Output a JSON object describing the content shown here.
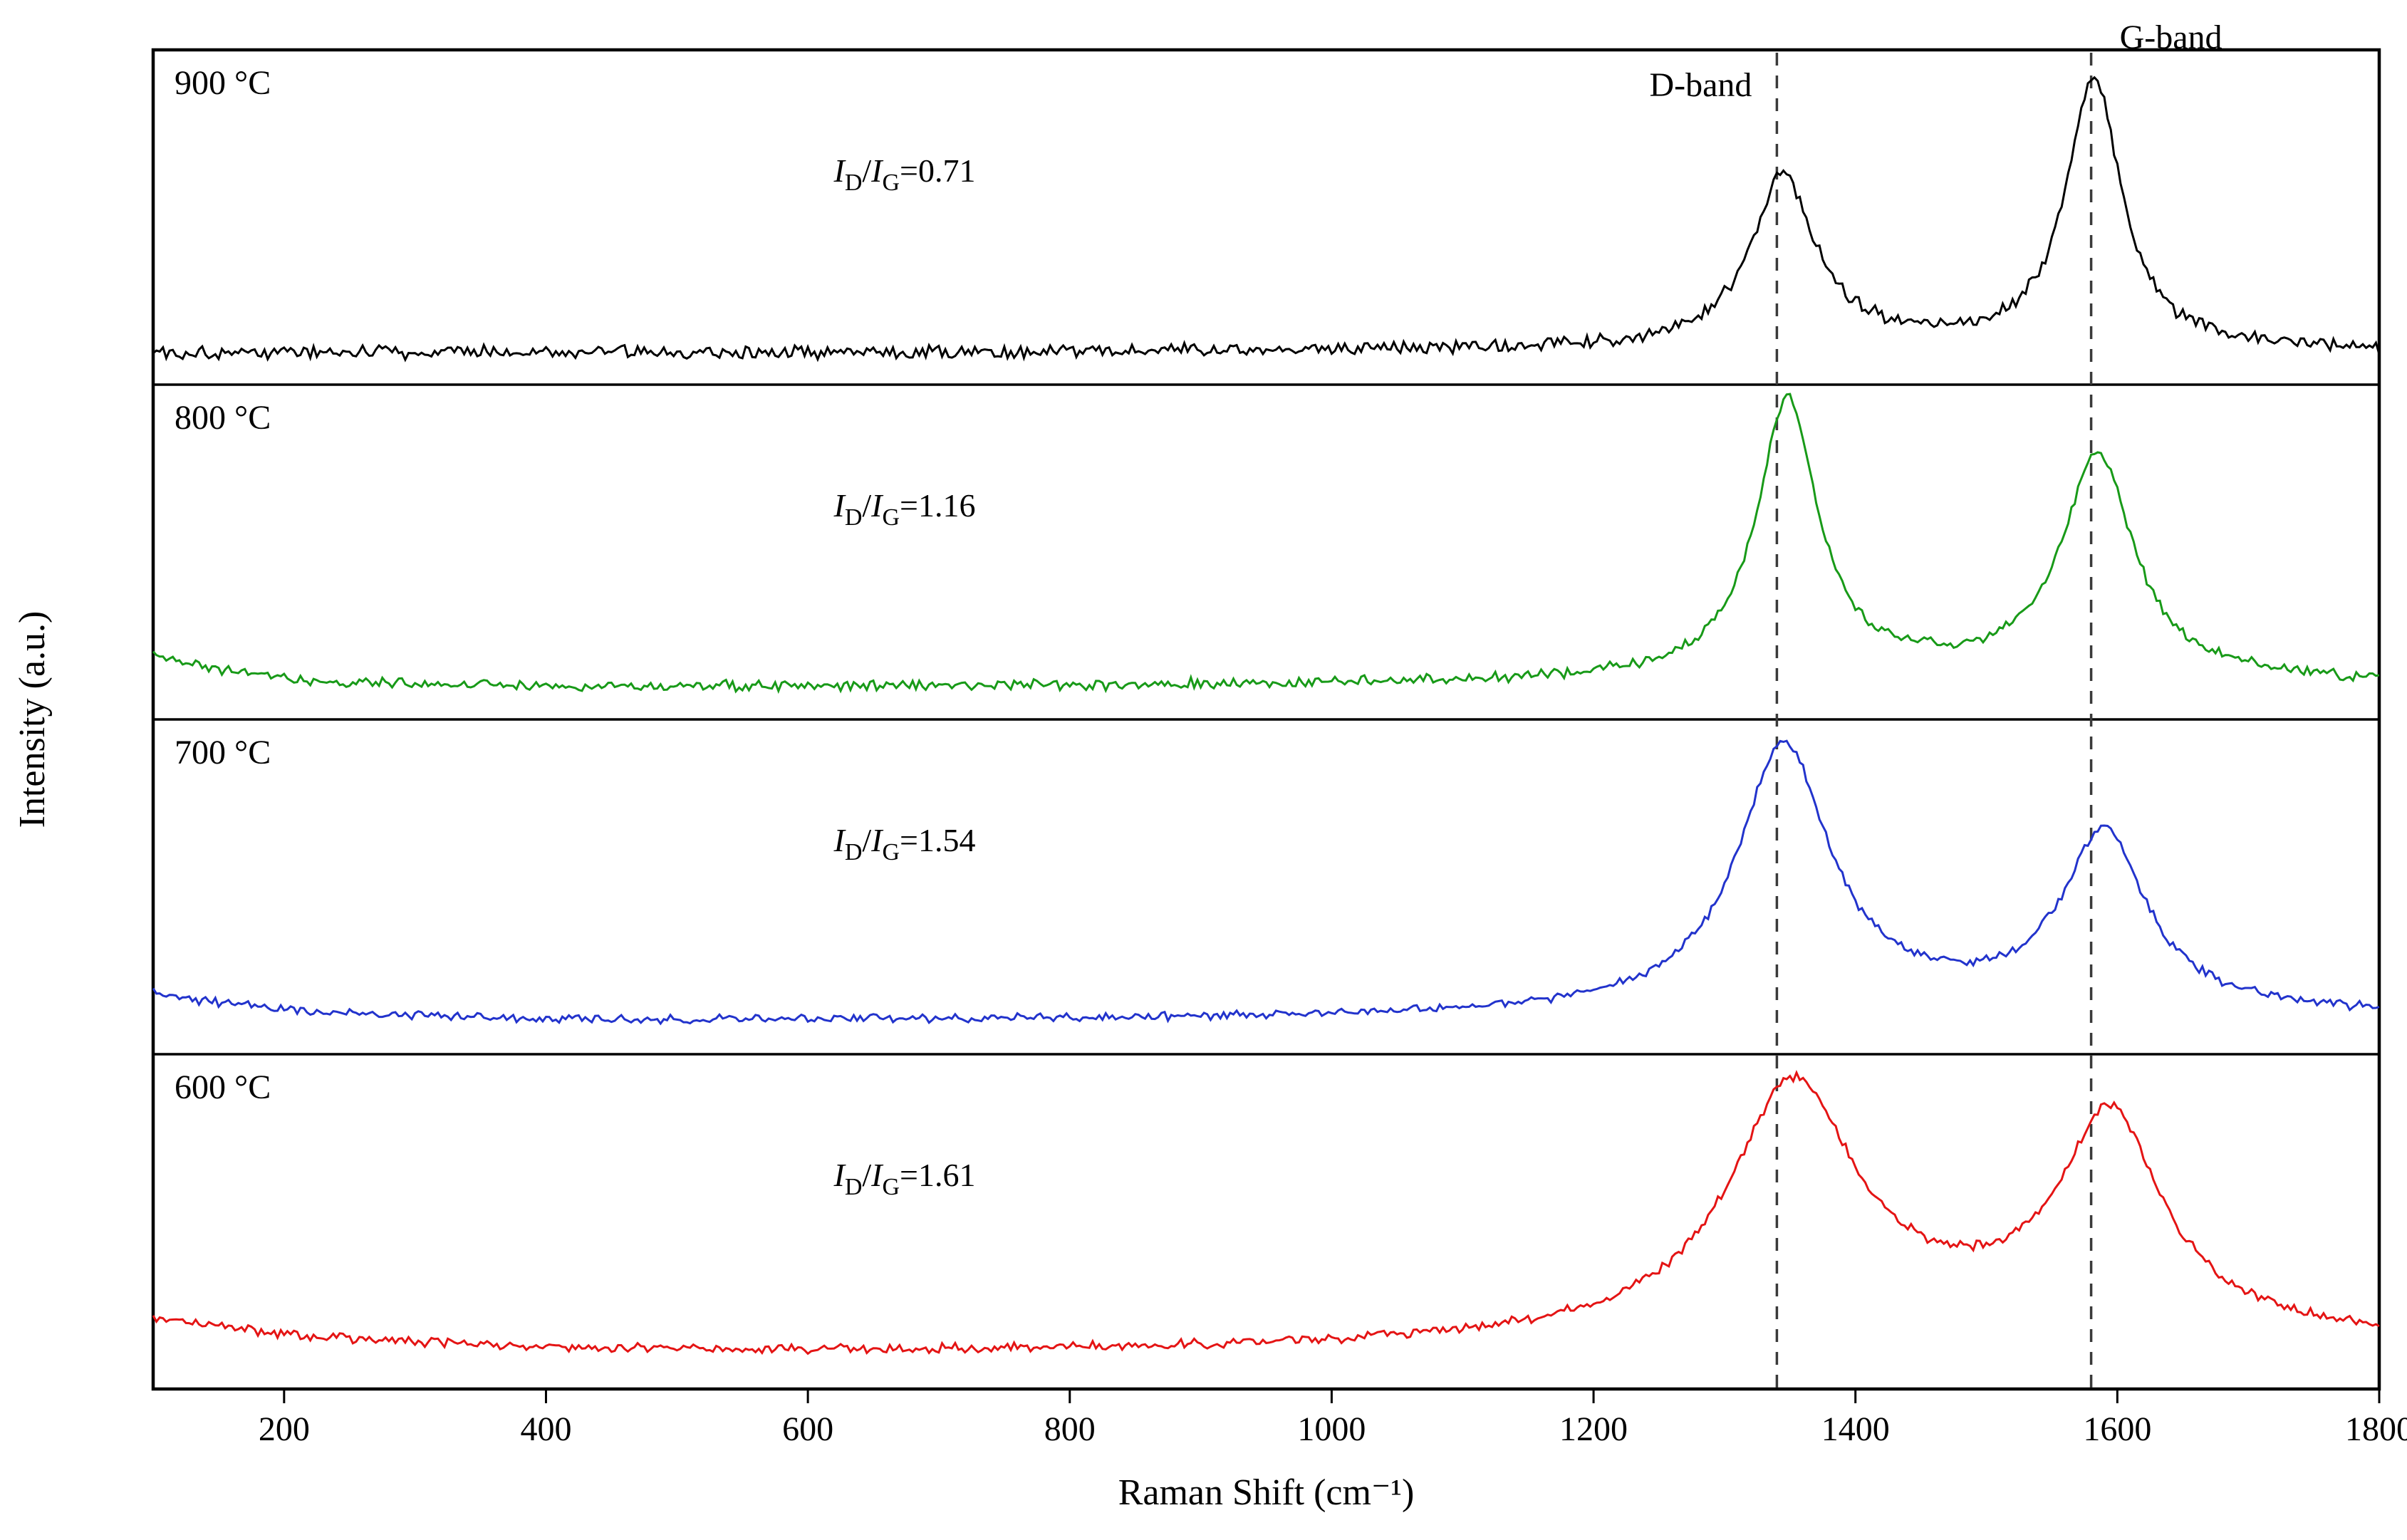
{
  "chart_data": {
    "type": "line",
    "title": "",
    "xlabel": "Raman Shift (cm⁻¹)",
    "ylabel": "Intensity (a.u.)",
    "xlim": [
      100,
      1800
    ],
    "x_ticks": [
      200,
      400,
      600,
      800,
      1000,
      1200,
      1400,
      1600,
      1800
    ],
    "grid": false,
    "legend": "none",
    "bands": {
      "d": {
        "label": "D-band",
        "x": 1340
      },
      "g": {
        "label": "G-band",
        "x": 1580
      },
      "line_color": "#3a3a3a"
    },
    "series": [
      {
        "name": "900 °C",
        "color": "#000000",
        "ratio_parts": {
          "sym": "I",
          "sub1": "D",
          "slash": "/",
          "sub2": "G",
          "eq": "=0.71"
        },
        "peaks": [
          {
            "center": 1345,
            "hwhm": 30,
            "height": 0.58
          },
          {
            "center": 1582,
            "hwhm": 25,
            "height": 0.92
          }
        ],
        "broad": {
          "center": 1460,
          "hwhm": 220,
          "height": 0.03
        },
        "left_decay": {
          "height": 0.0,
          "tau": 100
        },
        "noise": 0.03,
        "baseline": 0.0
      },
      {
        "name": "800 °C",
        "color": "#189a18",
        "ratio_parts": {
          "sym": "I",
          "sub1": "D",
          "slash": "/",
          "sub2": "G",
          "eq": "=1.16"
        },
        "peaks": [
          {
            "center": 1348,
            "hwhm": 28,
            "height": 0.95
          },
          {
            "center": 1585,
            "hwhm": 33,
            "height": 0.76
          }
        ],
        "broad": {
          "center": 1460,
          "hwhm": 240,
          "height": 0.05
        },
        "left_decay": {
          "height": 0.12,
          "tau": 70
        },
        "noise": 0.022,
        "baseline": 0.0
      },
      {
        "name": "700 °C",
        "color": "#2233cc",
        "ratio_parts": {
          "sym": "I",
          "sub1": "D",
          "slash": "/",
          "sub2": "G",
          "eq": "=1.54"
        },
        "peaks": [
          {
            "center": 1345,
            "hwhm": 42,
            "height": 0.9
          },
          {
            "center": 1590,
            "hwhm": 38,
            "height": 0.6
          }
        ],
        "broad": {
          "center": 1450,
          "hwhm": 260,
          "height": 0.07
        },
        "left_decay": {
          "height": 0.1,
          "tau": 110
        },
        "noise": 0.018,
        "baseline": 0.0
      },
      {
        "name": "600 °C",
        "color": "#e41414",
        "ratio_parts": {
          "sym": "I",
          "sub1": "D",
          "slash": "/",
          "sub2": "G",
          "eq": "=1.61"
        },
        "peaks": [
          {
            "center": 1352,
            "hwhm": 58,
            "height": 0.82
          },
          {
            "center": 1595,
            "hwhm": 46,
            "height": 0.7
          }
        ],
        "broad": {
          "center": 1480,
          "hwhm": 280,
          "height": 0.15
        },
        "left_decay": {
          "height": 0.13,
          "tau": 170
        },
        "noise": 0.02,
        "baseline": 0.0
      }
    ]
  }
}
